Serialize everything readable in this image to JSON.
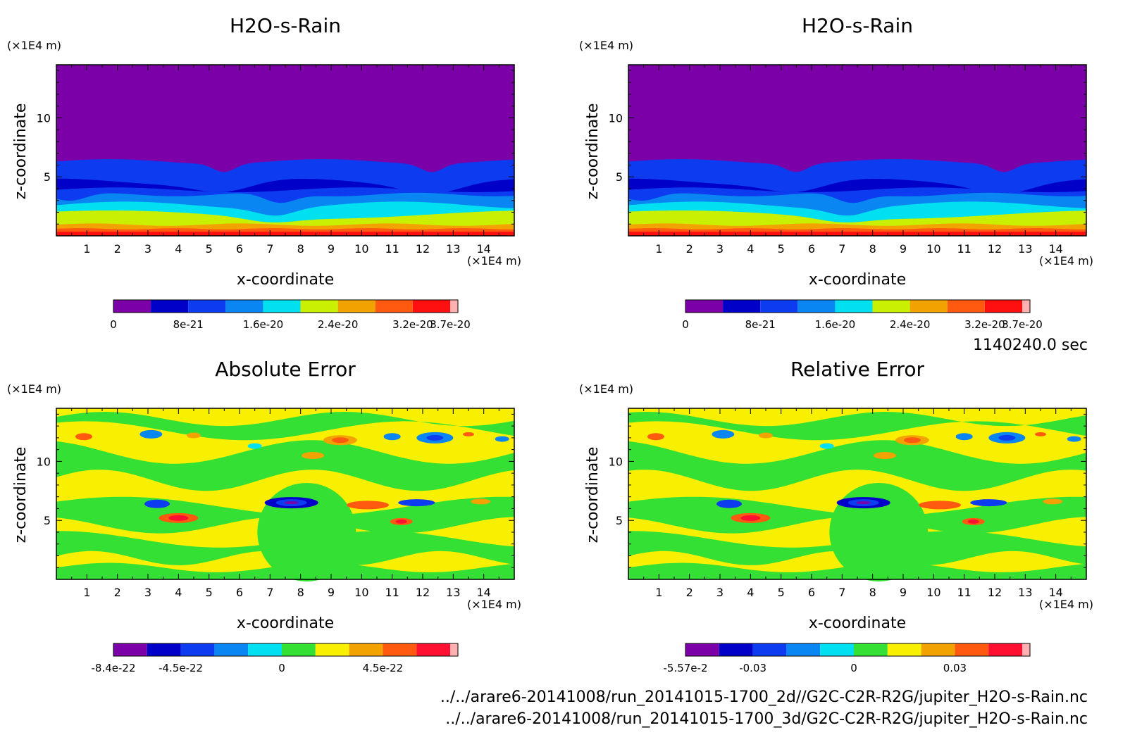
{
  "panels": [
    {
      "title": "H2O-s-Rain",
      "kind": "field",
      "y_unit": "(×1E4 m)",
      "x_unit": "(×1E4 m)",
      "xlabel": "x-coordinate",
      "ylabel": "z-coordinate",
      "x_ticks": [
        "1",
        "2",
        "3",
        "4",
        "5",
        "6",
        "7",
        "8",
        "9",
        "10",
        "11",
        "12",
        "13",
        "14"
      ],
      "y_ticks": [
        "5",
        "10"
      ],
      "colorbar": {
        "colors": [
          "#7b00a8",
          "#0000c8",
          "#0d3cf0",
          "#0a86f2",
          "#00e0f0",
          "#c8f000",
          "#f3a300",
          "#ff5a10",
          "#ff1010",
          "#ffb0b0"
        ],
        "labels": [
          "0",
          "8e-21",
          "1.6e-20",
          "2.4e-20",
          "3.2e-20",
          "3.7e-20"
        ]
      }
    },
    {
      "title": "H2O-s-Rain",
      "kind": "field",
      "y_unit": "(×1E4 m)",
      "x_unit": "(×1E4 m)",
      "xlabel": "x-coordinate",
      "ylabel": "z-coordinate",
      "x_ticks": [
        "1",
        "2",
        "3",
        "4",
        "5",
        "6",
        "7",
        "8",
        "9",
        "10",
        "11",
        "12",
        "13",
        "14"
      ],
      "y_ticks": [
        "5",
        "10"
      ],
      "colorbar": {
        "colors": [
          "#7b00a8",
          "#0000c8",
          "#0d3cf0",
          "#0a86f2",
          "#00e0f0",
          "#c8f000",
          "#f3a300",
          "#ff5a10",
          "#ff1010",
          "#ffb0b0"
        ],
        "labels": [
          "0",
          "8e-21",
          "1.6e-20",
          "2.4e-20",
          "3.2e-20",
          "3.7e-20"
        ]
      }
    },
    {
      "title": "Absolute Error",
      "kind": "error",
      "y_unit": "(×1E4 m)",
      "x_unit": "(×1E4 m)",
      "xlabel": "x-coordinate",
      "ylabel": "z-coordinate",
      "x_ticks": [
        "1",
        "2",
        "3",
        "4",
        "5",
        "6",
        "7",
        "8",
        "9",
        "10",
        "11",
        "12",
        "13",
        "14"
      ],
      "y_ticks": [
        "5",
        "10"
      ],
      "colorbar": {
        "colors": [
          "#7b00a8",
          "#0000c8",
          "#0d3cf0",
          "#0a86f2",
          "#00e0f0",
          "#34e034",
          "#f8f000",
          "#f3a300",
          "#ff5a10",
          "#ff1030",
          "#ffb0b0"
        ],
        "labels": [
          "-8.4e-22",
          "-4.5e-22",
          "0",
          "4.5e-22"
        ]
      }
    },
    {
      "title": "Relative Error",
      "kind": "error",
      "y_unit": "(×1E4 m)",
      "x_unit": "(×1E4 m)",
      "xlabel": "x-coordinate",
      "ylabel": "z-coordinate",
      "x_ticks": [
        "1",
        "2",
        "3",
        "4",
        "5",
        "6",
        "7",
        "8",
        "9",
        "10",
        "11",
        "12",
        "13",
        "14"
      ],
      "y_ticks": [
        "5",
        "10"
      ],
      "colorbar": {
        "colors": [
          "#7b00a8",
          "#0000c8",
          "#0d3cf0",
          "#0a86f2",
          "#00e0f0",
          "#34e034",
          "#f8f000",
          "#f3a300",
          "#ff5a10",
          "#ff1030",
          "#ffb0b0"
        ],
        "labels": [
          "-5.57e-2",
          "-0.03",
          "0",
          "0.03"
        ]
      }
    }
  ],
  "time_label": "1140240.0 sec",
  "footer_lines": [
    "../../arare6-20141008/run_20141015-1700_2d//G2C-C2R-R2G/jupiter_H2O-s-Rain.nc",
    "../../arare6-20141008/run_20141015-1700_3d/G2C-C2R-R2G/jupiter_H2O-s-Rain.nc"
  ],
  "chart_data": [
    {
      "type": "heatmap",
      "title": "H2O-s-Rain",
      "xlabel": "x-coordinate",
      "ylabel": "z-coordinate",
      "x_unit": "(×1E4 m)",
      "y_unit": "(×1E4 m)",
      "xlim": [
        0,
        15
      ],
      "ylim": [
        0,
        14.5
      ],
      "colorbar_range": [
        0,
        3.7e-20
      ],
      "layers_top_z": [
        {
          "level": "0",
          "z_top_approx": 14.5
        },
        {
          "level": "8e-21 band",
          "z_top_approx": 6.3
        },
        {
          "level": "1.6e-20 band",
          "z_top_approx": 3.5
        },
        {
          "level": "2.4e-20 band",
          "z_top_approx": 1.9
        },
        {
          "level": "3.2e-20 band",
          "z_top_approx": 0.8
        }
      ]
    },
    {
      "type": "heatmap",
      "title": "H2O-s-Rain",
      "xlabel": "x-coordinate",
      "ylabel": "z-coordinate",
      "x_unit": "(×1E4 m)",
      "y_unit": "(×1E4 m)",
      "xlim": [
        0,
        15
      ],
      "ylim": [
        0,
        14.5
      ],
      "colorbar_range": [
        0,
        3.7e-20
      ]
    },
    {
      "type": "heatmap",
      "title": "Absolute Error",
      "xlabel": "x-coordinate",
      "ylabel": "z-coordinate",
      "xlim": [
        0,
        15
      ],
      "ylim": [
        0,
        14.5
      ],
      "colorbar_range": [
        -8.4e-22,
        8.4e-22
      ]
    },
    {
      "type": "heatmap",
      "title": "Relative Error",
      "xlabel": "x-coordinate",
      "ylabel": "z-coordinate",
      "xlim": [
        0,
        15
      ],
      "ylim": [
        0,
        14.5
      ],
      "colorbar_range": [
        -0.0557,
        0.0557
      ]
    }
  ]
}
